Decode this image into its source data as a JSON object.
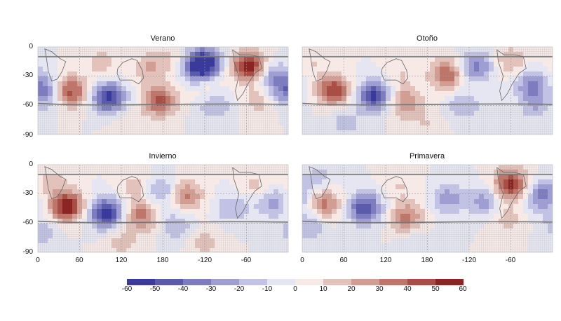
{
  "chart_data": {
    "type": "heatmap",
    "panels": [
      {
        "title": "Verano",
        "anomalies": [
          {
            "lon": 47,
            "lat": -46,
            "value": 45
          },
          {
            "lon": 90,
            "lat": -16,
            "value": 15
          },
          {
            "lon": 102,
            "lat": -52,
            "value": -55
          },
          {
            "lon": 160,
            "lat": -22,
            "value": 20
          },
          {
            "lon": 175,
            "lat": -55,
            "value": 45
          },
          {
            "lon": 192,
            "lat": -12,
            "value": 12
          },
          {
            "lon": 228,
            "lat": -22,
            "value": -30
          },
          {
            "lon": 245,
            "lat": -45,
            "value": 15
          },
          {
            "lon": 252,
            "lat": -58,
            "value": -25
          },
          {
            "lon": 240,
            "lat": -16,
            "value": -55
          },
          {
            "lon": 304,
            "lat": -20,
            "value": 58
          },
          {
            "lon": 338,
            "lat": -30,
            "value": -25
          },
          {
            "lon": 318,
            "lat": -55,
            "value": 15
          },
          {
            "lon": 355,
            "lat": -42,
            "value": -20
          },
          {
            "lon": 12,
            "lat": -48,
            "value": -25
          },
          {
            "lon": 130,
            "lat": -80,
            "value": 10
          }
        ]
      },
      {
        "title": "Otoño",
        "anomalies": [
          {
            "lon": 45,
            "lat": -45,
            "value": 50
          },
          {
            "lon": 15,
            "lat": -15,
            "value": 10
          },
          {
            "lon": 103,
            "lat": -50,
            "value": -55
          },
          {
            "lon": 62,
            "lat": -78,
            "value": -15
          },
          {
            "lon": 148,
            "lat": -57,
            "value": 30
          },
          {
            "lon": 140,
            "lat": -28,
            "value": 10
          },
          {
            "lon": 208,
            "lat": -28,
            "value": 40
          },
          {
            "lon": 250,
            "lat": -20,
            "value": -35
          },
          {
            "lon": 232,
            "lat": -60,
            "value": -20
          },
          {
            "lon": 300,
            "lat": -15,
            "value": 20
          },
          {
            "lon": 330,
            "lat": -38,
            "value": -30
          },
          {
            "lon": 335,
            "lat": -58,
            "value": -20
          },
          {
            "lon": 180,
            "lat": -80,
            "value": 10
          }
        ]
      },
      {
        "title": "Invierno",
        "anomalies": [
          {
            "lon": 42,
            "lat": -43,
            "value": 58
          },
          {
            "lon": 20,
            "lat": -18,
            "value": 15
          },
          {
            "lon": 98,
            "lat": -50,
            "value": -58
          },
          {
            "lon": 140,
            "lat": -22,
            "value": 15
          },
          {
            "lon": 150,
            "lat": -52,
            "value": 35
          },
          {
            "lon": 178,
            "lat": -28,
            "value": -25
          },
          {
            "lon": 212,
            "lat": -32,
            "value": 35
          },
          {
            "lon": 200,
            "lat": -62,
            "value": -20
          },
          {
            "lon": 240,
            "lat": -80,
            "value": 15
          },
          {
            "lon": 280,
            "lat": -45,
            "value": -20
          },
          {
            "lon": 315,
            "lat": -22,
            "value": 15
          },
          {
            "lon": 335,
            "lat": -38,
            "value": -25
          },
          {
            "lon": 120,
            "lat": -80,
            "value": 15
          },
          {
            "lon": 8,
            "lat": -70,
            "value": -15
          }
        ]
      },
      {
        "title": "Primavera",
        "anomalies": [
          {
            "lon": 32,
            "lat": -40,
            "value": 35
          },
          {
            "lon": 25,
            "lat": -14,
            "value": -15
          },
          {
            "lon": 90,
            "lat": -45,
            "value": -50
          },
          {
            "lon": 150,
            "lat": -55,
            "value": 35
          },
          {
            "lon": 140,
            "lat": -22,
            "value": 10
          },
          {
            "lon": 210,
            "lat": -35,
            "value": -25
          },
          {
            "lon": 262,
            "lat": -38,
            "value": -25
          },
          {
            "lon": 300,
            "lat": -20,
            "value": 55
          },
          {
            "lon": 295,
            "lat": -55,
            "value": 15
          },
          {
            "lon": 345,
            "lat": -32,
            "value": -35
          },
          {
            "lon": 10,
            "lat": -62,
            "value": -20
          },
          {
            "lon": 160,
            "lat": -78,
            "value": -10
          }
        ]
      }
    ],
    "x_ticks": [
      "0",
      "60",
      "120",
      "180",
      "-120",
      "-60"
    ],
    "y_ticks": [
      "0",
      "-30",
      "-60",
      "-90"
    ],
    "xlim": [
      0,
      360
    ],
    "ylim": [
      -90,
      0
    ],
    "colorbar": {
      "ticks": [
        "-60",
        "-50",
        "-40",
        "-30",
        "-20",
        "-10",
        "0",
        "10",
        "20",
        "30",
        "40",
        "50",
        "60"
      ],
      "levels": [
        -60,
        -50,
        -40,
        -30,
        -20,
        -10,
        0,
        10,
        20,
        30,
        40,
        50,
        60
      ],
      "colors": [
        "#3a3a9c",
        "#5b5bab",
        "#7c7cbf",
        "#9e9ed2",
        "#c2c2e4",
        "#e6e6f3",
        "#f6e9e6",
        "#e3c2bb",
        "#d29e93",
        "#bf766a",
        "#a84e44",
        "#8a2523"
      ]
    }
  }
}
